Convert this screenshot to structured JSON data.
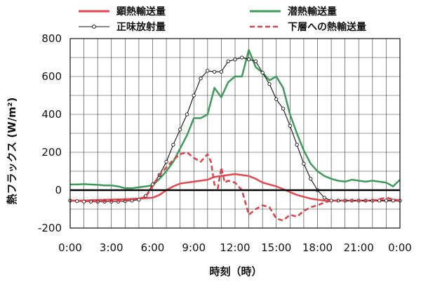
{
  "chart_data": {
    "type": "line",
    "xlabel": "時刻（時）",
    "ylabel": "熱フラックス (W/m²)",
    "xlim": [
      0,
      24
    ],
    "ylim": [
      -200,
      800
    ],
    "x_ticks": [
      0,
      3,
      6,
      9,
      12,
      15,
      18,
      21,
      24
    ],
    "x_tick_labels": [
      "0:00",
      "3:00",
      "6:00",
      "9:00",
      "12:00",
      "15:00",
      "18:00",
      "21:00",
      "0:00"
    ],
    "y_ticks": [
      -200,
      0,
      200,
      400,
      600,
      800
    ],
    "y_tick_labels": [
      "-200",
      "0",
      "200",
      "400",
      "600",
      "800"
    ],
    "grid": true,
    "legend_position": "top",
    "series": [
      {
        "name": "顕熱輸送量",
        "color": "#e8464e",
        "style": "solid",
        "x": [
          0,
          1,
          2,
          3,
          4,
          5,
          6,
          6.5,
          7,
          7.5,
          8,
          8.5,
          9,
          9.5,
          10,
          10.5,
          11,
          11.5,
          12,
          12.5,
          13,
          13.5,
          14,
          14.5,
          15,
          15.5,
          16,
          16.5,
          17,
          17.5,
          18,
          18.5,
          19,
          20,
          21,
          22,
          23,
          24
        ],
        "y": [
          -55,
          -55,
          -52,
          -50,
          -48,
          -45,
          -40,
          -25,
          0,
          20,
          35,
          40,
          45,
          50,
          55,
          70,
          75,
          80,
          85,
          80,
          75,
          60,
          40,
          30,
          20,
          5,
          -10,
          -25,
          -35,
          -45,
          -50,
          -55,
          -55,
          -55,
          -55,
          -55,
          -55,
          -55
        ]
      },
      {
        "name": "潜熱輸送量",
        "color": "#3d9a5a",
        "style": "solid",
        "x": [
          0,
          0.5,
          1,
          1.5,
          2,
          2.5,
          3,
          3.5,
          4,
          4.5,
          5,
          5.5,
          6,
          6.5,
          7,
          7.5,
          8,
          8.5,
          9,
          9.5,
          10,
          10.5,
          11,
          11.5,
          12,
          12.5,
          13,
          13.5,
          14,
          14.5,
          15,
          15.5,
          16,
          16.5,
          17,
          17.5,
          18,
          18.5,
          19,
          19.5,
          20,
          20.5,
          21,
          21.5,
          22,
          22.5,
          23,
          23.5,
          24
        ],
        "y": [
          30,
          30,
          32,
          30,
          28,
          25,
          25,
          20,
          10,
          10,
          15,
          20,
          25,
          60,
          100,
          150,
          220,
          290,
          380,
          380,
          400,
          540,
          490,
          570,
          600,
          600,
          740,
          650,
          620,
          580,
          600,
          540,
          400,
          300,
          210,
          140,
          100,
          75,
          60,
          50,
          45,
          55,
          50,
          45,
          50,
          45,
          40,
          20,
          55
        ]
      },
      {
        "name": "正味放射量",
        "color": "#111111",
        "style": "solid-markers",
        "x": [
          0,
          0.5,
          1,
          1.5,
          2,
          2.5,
          3,
          3.5,
          4,
          4.5,
          5,
          5.5,
          6,
          6.5,
          7,
          7.5,
          8,
          8.5,
          9,
          9.5,
          10,
          10.5,
          11,
          11.5,
          12,
          12.5,
          13,
          13.5,
          14,
          14.5,
          15,
          15.5,
          16,
          16.5,
          17,
          17.5,
          18,
          18.5,
          19,
          19.5,
          20,
          20.5,
          21,
          21.5,
          22,
          22.5,
          23,
          23.5,
          24
        ],
        "y": [
          -55,
          -58,
          -60,
          -60,
          -60,
          -60,
          -60,
          -60,
          -58,
          -55,
          -50,
          -30,
          30,
          80,
          150,
          240,
          320,
          400,
          500,
          590,
          630,
          625,
          625,
          680,
          690,
          700,
          690,
          680,
          620,
          560,
          480,
          430,
          340,
          240,
          140,
          60,
          0,
          -40,
          -55,
          -55,
          -55,
          -55,
          -55,
          -55,
          -55,
          -55,
          -55,
          -55,
          -55
        ]
      },
      {
        "name": "下層への熱輸送量",
        "color": "#d9434a",
        "style": "dashed",
        "x": [
          0,
          1,
          2,
          3,
          4,
          5,
          5.5,
          6,
          6.5,
          7,
          7.5,
          8,
          8.5,
          9,
          9.5,
          10,
          10.25,
          10.5,
          10.75,
          11,
          11.25,
          11.5,
          12,
          12.5,
          13,
          13.5,
          14,
          14.5,
          15,
          15.5,
          16,
          16.5,
          17,
          17.5,
          18,
          18.5,
          19,
          20,
          21,
          22,
          23,
          24
        ],
        "y": [
          -55,
          -58,
          -60,
          -58,
          -55,
          -45,
          -35,
          20,
          80,
          120,
          160,
          190,
          200,
          170,
          150,
          190,
          150,
          30,
          10,
          120,
          40,
          50,
          40,
          0,
          -130,
          -100,
          -80,
          -90,
          -150,
          -160,
          -130,
          -140,
          -110,
          -90,
          -80,
          -65,
          -55,
          -55,
          -55,
          -55,
          -40,
          -55
        ]
      }
    ]
  }
}
